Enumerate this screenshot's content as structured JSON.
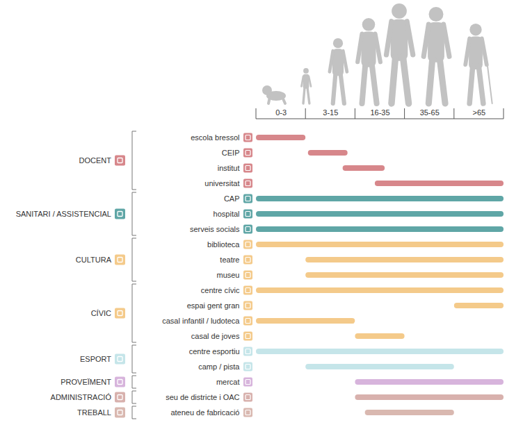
{
  "chart_data": {
    "type": "gantt",
    "orientation": "horizontal",
    "grid": false,
    "xlim": [
      0,
      5
    ],
    "xticks": [
      {
        "value": 0.5,
        "label": "0-3"
      },
      {
        "value": 1.5,
        "label": "3-15"
      },
      {
        "value": 2.5,
        "label": "16-35"
      },
      {
        "value": 3.5,
        "label": "35-65"
      },
      {
        "value": 4.5,
        "label": ">65"
      }
    ],
    "series": [
      {
        "name": "DOCENT",
        "color": "#d7878b",
        "categories": [
          "escola bressol",
          "CEIP",
          "institut",
          "universitat"
        ],
        "start": [
          0,
          1.05,
          1.75,
          2.4
        ],
        "end": [
          1,
          1.85,
          2.6,
          5
        ]
      },
      {
        "name": "SANITARI / ASSISTENCIAL",
        "color": "#5fa6a6",
        "categories": [
          "CAP",
          "hospital",
          "serveis socials"
        ],
        "start": [
          0,
          0,
          0
        ],
        "end": [
          5,
          5,
          5
        ]
      },
      {
        "name": "CULTURA",
        "color": "#f4ca8a",
        "categories": [
          "biblioteca",
          "teatre",
          "museu"
        ],
        "start": [
          0,
          1,
          1
        ],
        "end": [
          5,
          5,
          5
        ]
      },
      {
        "name": "CÍVIC",
        "color": "#f4ca8a",
        "categories": [
          "centre cívic",
          "espai gent gran",
          "casal infantil / ludoteca",
          "casal de joves"
        ],
        "start": [
          0,
          4,
          0,
          2
        ],
        "end": [
          5,
          5,
          2,
          3
        ]
      },
      {
        "name": "ESPORT",
        "color": "#c5e5e9",
        "categories": [
          "centre esportiu",
          "camp / pista"
        ],
        "start": [
          0,
          1
        ],
        "end": [
          5,
          4
        ]
      },
      {
        "name": "PROVEÏMENT",
        "color": "#d7b4dc",
        "categories": [
          "mercat"
        ],
        "start": [
          2
        ],
        "end": [
          5
        ]
      },
      {
        "name": "ADMINISTRACIÓ",
        "color": "#d8b1ad",
        "categories": [
          "seu de districte i OAC"
        ],
        "start": [
          2
        ],
        "end": [
          5
        ]
      },
      {
        "name": "TREBALL",
        "color": "#d9b8b0",
        "categories": [
          "ateneu de fabricació"
        ],
        "start": [
          2.2
        ],
        "end": [
          4
        ]
      }
    ]
  }
}
